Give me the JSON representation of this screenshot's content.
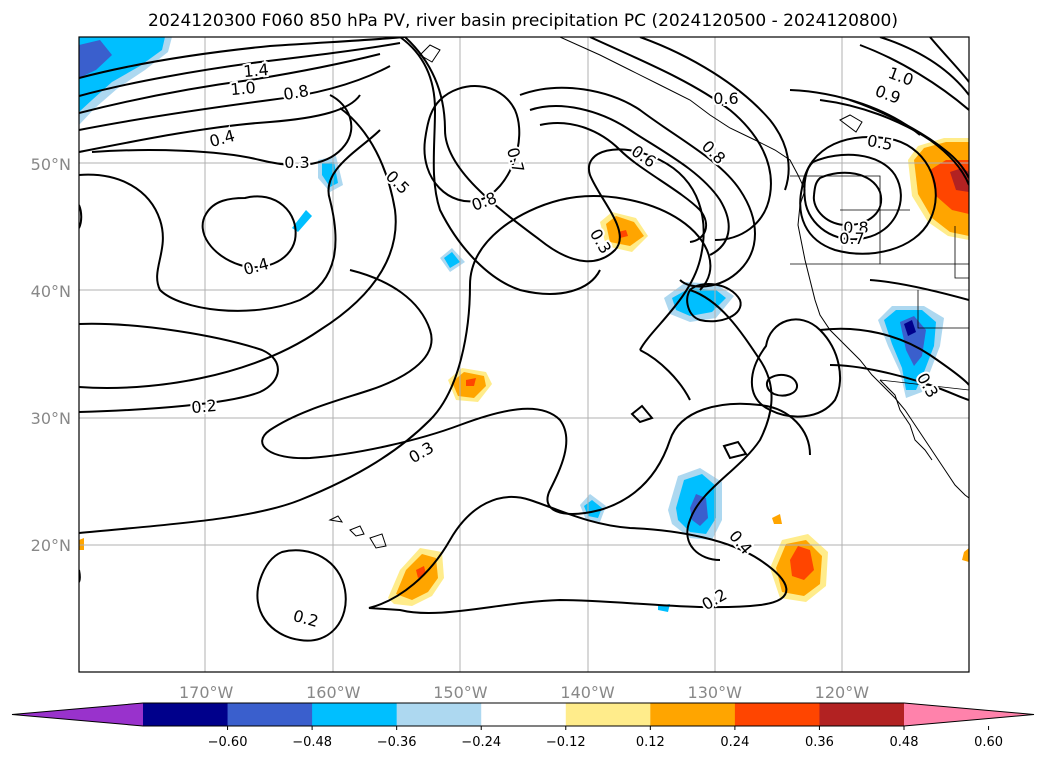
{
  "title": "2024120300 F060 850 hPa PV, river basin precipitation PC (2024120500 - 2024120800)",
  "lat_ticks": [
    {
      "label": "50°N",
      "lat": 50
    },
    {
      "label": "40°N",
      "lat": 40
    },
    {
      "label": "30°N",
      "lat": 30
    },
    {
      "label": "20°N",
      "lat": 20
    }
  ],
  "lon_ticks": [
    {
      "label": "170°W",
      "lon": -170
    },
    {
      "label": "160°W",
      "lon": -160
    },
    {
      "label": "150°W",
      "lon": -150
    },
    {
      "label": "140°W",
      "lon": -140
    },
    {
      "label": "130°W",
      "lon": -130
    },
    {
      "label": "120°W",
      "lon": -120
    }
  ],
  "map_extent": {
    "lon_min": -180,
    "lon_max": -110,
    "lat_min": 10,
    "lat_max": 60
  },
  "colorbar": {
    "tick_labels": [
      "−0.60",
      "−0.48",
      "−0.36",
      "−0.24",
      "−0.12",
      "0.12",
      "0.24",
      "0.36",
      "0.48",
      "0.60"
    ],
    "under_color": "#9932cc",
    "bin_colors": [
      "#00008b",
      "#3a5fcd",
      "#00bfff",
      "#add8f0",
      "#ffffff",
      "#ffec8b",
      "#ffa500",
      "#ff4500",
      "#b22222"
    ],
    "over_color": "#ff82ab"
  },
  "contour_labels": [
    {
      "text": "1.4",
      "rot": -5
    },
    {
      "text": "1.0",
      "rot": -5
    },
    {
      "text": "0.8",
      "rot": -10
    },
    {
      "text": "0.4",
      "rot": -15
    },
    {
      "text": "0.3",
      "rot": 0
    },
    {
      "text": "0.5",
      "rot": 45
    },
    {
      "text": "0.8",
      "rot": -20
    },
    {
      "text": "0.7",
      "rot": 75
    },
    {
      "text": "0.6",
      "rot": 35
    },
    {
      "text": "0.6",
      "rot": 0
    },
    {
      "text": "0.8",
      "rot": 45
    },
    {
      "text": "1.0",
      "rot": 20
    },
    {
      "text": "0.9",
      "rot": 20
    },
    {
      "text": "0.5",
      "rot": 10
    },
    {
      "text": "0.8",
      "rot": 0
    },
    {
      "text": "0.7",
      "rot": 0
    },
    {
      "text": "0.3",
      "rot": 60
    },
    {
      "text": "0.4",
      "rot": -15
    },
    {
      "text": "0.2",
      "rot": -5
    },
    {
      "text": "0.3",
      "rot": -30
    },
    {
      "text": "0.4",
      "rot": 50
    },
    {
      "text": "0.2",
      "rot": 15
    },
    {
      "text": "0.2",
      "rot": -30
    },
    {
      "text": "0.3",
      "rot": 60
    }
  ]
}
